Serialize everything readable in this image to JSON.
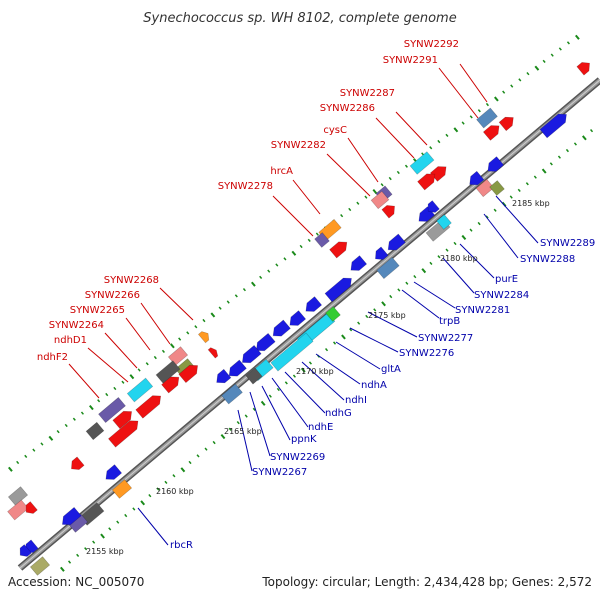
{
  "title": "Synechococcus sp. WH 8102, complete genome",
  "footer": {
    "accession": "Accession: NC_005070",
    "topology": "Topology: circular; Length: 2,434,428 bp; Genes: 2,572"
  },
  "colors": {
    "forward_genes": "#ee0000",
    "reverse_genes": "#0000dd",
    "backbone": "#888888",
    "forward_labels": "#cc0000",
    "reverse_labels": "#0000aa"
  },
  "positions": [
    "2155 kbp",
    "2160 kbp",
    "2165 kbp",
    "2170 kbp",
    "2175 kbp",
    "2180 kbp",
    "2185 kbp"
  ],
  "forward_labels": [
    "SYNW2292",
    "SYNW2291",
    "SYNW2287",
    "SYNW2286",
    "cysC",
    "SYNW2282",
    "hrcA",
    "SYNW2278",
    "SYNW2268",
    "SYNW2266",
    "SYNW2265",
    "SYNW2264",
    "ndhD1",
    "ndhF2"
  ],
  "reverse_labels": [
    "SYNW2289",
    "SYNW2288",
    "purE",
    "SYNW2284",
    "SYNW2281",
    "trpB",
    "SYNW2277",
    "SYNW2276",
    "gltA",
    "ndhA",
    "ndhI",
    "ndhG",
    "ndhE",
    "ppnK",
    "SYNW2269",
    "SYNW2267",
    "rbcR"
  ]
}
